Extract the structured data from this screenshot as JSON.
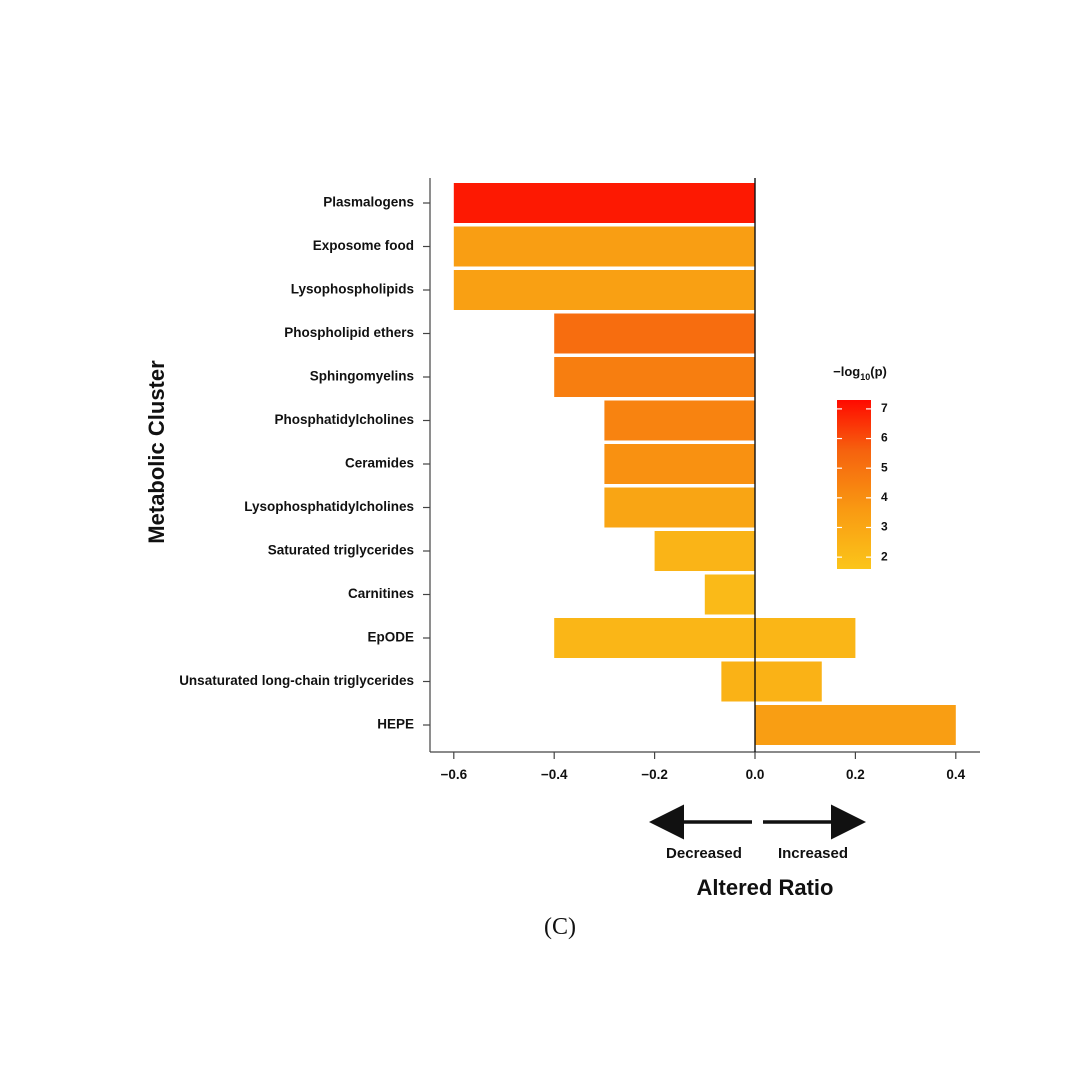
{
  "chart_data": {
    "type": "bar",
    "orientation": "horizontal",
    "xlabel": "Altered Ratio",
    "ylabel": "Metabolic Cluster",
    "xlim": [
      -0.66,
      0.45
    ],
    "xticks": [
      -0.6,
      -0.4,
      -0.2,
      0.0,
      0.2,
      0.4
    ],
    "xtick_labels": [
      "−0.6",
      "−0.4",
      "−0.2",
      "0.0",
      "0.2",
      "0.4"
    ],
    "categories": [
      "Plasmalogens",
      "Exposome food",
      "Lysophospholipids",
      "Phospholipid ethers",
      "Sphingomyelins",
      "Phosphatidylcholines",
      "Ceramides",
      "Lysophosphatidylcholines",
      "Saturated triglycerides",
      "Carnitines",
      "EpODE",
      "Unsaturated long-chain triglycerides",
      "HEPE"
    ],
    "bars": [
      {
        "neg": -0.6,
        "pos": 0,
        "log_p": 7.0
      },
      {
        "neg": -0.6,
        "pos": 0,
        "log_p": 3.4
      },
      {
        "neg": -0.6,
        "pos": 0,
        "log_p": 3.3
      },
      {
        "neg": -0.4,
        "pos": 0,
        "log_p": 5.2
      },
      {
        "neg": -0.4,
        "pos": 0,
        "log_p": 4.6
      },
      {
        "neg": -0.3,
        "pos": 0,
        "log_p": 4.4
      },
      {
        "neg": -0.3,
        "pos": 0,
        "log_p": 3.9
      },
      {
        "neg": -0.3,
        "pos": 0,
        "log_p": 3.1
      },
      {
        "neg": -0.2,
        "pos": 0,
        "log_p": 2.4
      },
      {
        "neg": -0.1,
        "pos": 0,
        "log_p": 2.1
      },
      {
        "neg": -0.4,
        "pos": 0.2,
        "log_p": 2.3
      },
      {
        "neg": -0.067,
        "pos": 0.133,
        "log_p": 2.5
      },
      {
        "neg": 0,
        "pos": 0.4,
        "log_p": 3.4
      }
    ],
    "colorbar": {
      "title_prefix": "−log",
      "title_sub": "10",
      "title_suffix": "(p)",
      "min": 1.6,
      "max": 7.3,
      "ticks": [
        "7",
        "6",
        "5",
        "4",
        "3",
        "2"
      ],
      "tick_values": [
        7,
        6,
        5,
        4,
        3,
        2
      ],
      "color_low": "#fbc51a",
      "color_high": "#ff0a00"
    },
    "direction": {
      "decreased": "Decreased",
      "increased": "Increased"
    },
    "grid": false,
    "legend_position": "right"
  },
  "panel_label": "(C)"
}
